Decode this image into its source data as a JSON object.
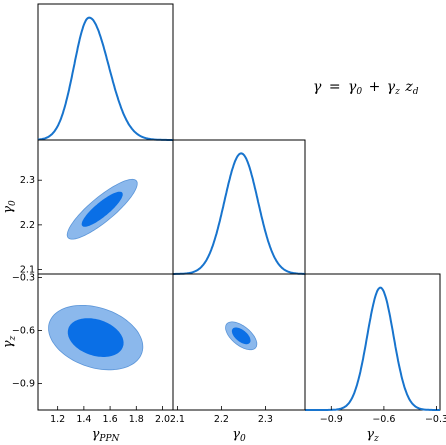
{
  "annotation": {
    "lhs": "γ",
    "eq": "=",
    "t1": "γ",
    "t1_sub": "0",
    "plus": "+",
    "t2": "γ",
    "t2_sub": "z",
    "t3": "z",
    "t3_sub": "d"
  },
  "colors": {
    "line": "#1874cd",
    "contour_inner": "#0a6fe6",
    "contour_outer": "#8bb8ec",
    "contour_edge": "#5b95d8"
  },
  "chart_data": {
    "type": "triangle-corner",
    "parameters": [
      {
        "symbol": "γ",
        "sub": "PPN",
        "range": [
          1.05,
          2.08
        ],
        "ticks": [
          1.2,
          1.4,
          1.6,
          1.8,
          2.0
        ],
        "tick_labels": [
          "1.2",
          "1.4",
          "1.6",
          "1.8",
          "2.0"
        ]
      },
      {
        "symbol": "γ",
        "sub": "0",
        "range": [
          2.09,
          2.39
        ],
        "ticks": [
          2.1,
          2.2,
          2.3
        ],
        "tick_labels": [
          "2.1",
          "2.2",
          "2.3"
        ]
      },
      {
        "symbol": "γ",
        "sub": "z",
        "range": [
          -1.05,
          -0.28
        ],
        "ticks": [
          -0.9,
          -0.6,
          -0.3
        ],
        "tick_labels": [
          "−0.9",
          "−0.6",
          "−0.3"
        ]
      }
    ],
    "marginals": [
      {
        "param": 0,
        "peak": 1.44,
        "sigma": 0.115,
        "skew": 0.03
      },
      {
        "param": 1,
        "peak": 2.245,
        "sigma": 0.038,
        "skew": 0.0
      },
      {
        "param": 2,
        "peak": -0.62,
        "sigma": 0.075,
        "skew": 0.0
      }
    ],
    "contours": [
      {
        "x": 0,
        "y": 1,
        "center": [
          1.54,
          2.235
        ],
        "outer": {
          "a": 0.33,
          "b": 0.09,
          "angle": 40
        },
        "inner": {
          "a": 0.19,
          "b": 0.05,
          "angle": 40
        }
      },
      {
        "x": 0,
        "y": 2,
        "center": [
          1.49,
          -0.64
        ],
        "outer": {
          "a": 0.36,
          "b": 0.22,
          "angle": -18
        },
        "inner": {
          "a": 0.21,
          "b": 0.13,
          "angle": -18
        }
      },
      {
        "x": 1,
        "y": 2,
        "center": [
          2.245,
          -0.63
        ],
        "outer": {
          "a": 0.14,
          "b": 0.07,
          "angle": -38
        },
        "inner": {
          "a": 0.08,
          "b": 0.04,
          "angle": -38
        }
      }
    ],
    "grid": false,
    "legend": "none"
  }
}
